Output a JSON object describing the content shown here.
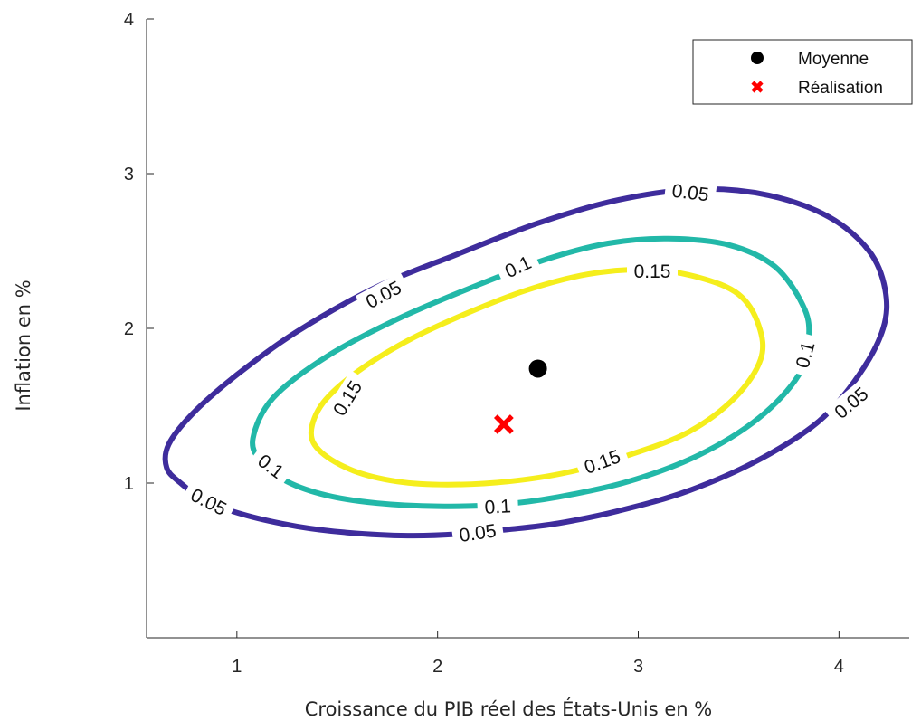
{
  "chart_data": {
    "type": "contour",
    "title": "",
    "xlabel": "Croissance du PIB réel des États-Unis en %",
    "ylabel": "Inflation en %",
    "xlim": [
      0.55,
      4.35
    ],
    "ylim": [
      0.0,
      4.0
    ],
    "xticks": [
      1,
      2,
      3,
      4
    ],
    "yticks": [
      1,
      2,
      3,
      4
    ],
    "grid": false,
    "legend_position": "top-right",
    "colors": {
      "axis": "#262626",
      "level_0_05": "#3e2c9c",
      "level_0_1": "#22b8a8",
      "level_0_15": "#f5ee1c",
      "mean": "#000000",
      "realisation": "#ff0000"
    },
    "contours": [
      {
        "level": 0.05,
        "label": "0.05",
        "color": "#3e2c9c",
        "points": [
          [
            0.65,
            1.1
          ],
          [
            0.72,
            1.0
          ],
          [
            0.85,
            0.88
          ],
          [
            1.05,
            0.79
          ],
          [
            1.3,
            0.72
          ],
          [
            1.55,
            0.68
          ],
          [
            1.85,
            0.66
          ],
          [
            2.1,
            0.67
          ],
          [
            2.35,
            0.7
          ],
          [
            2.6,
            0.74
          ],
          [
            2.9,
            0.82
          ],
          [
            3.25,
            0.95
          ],
          [
            3.6,
            1.15
          ],
          [
            3.9,
            1.4
          ],
          [
            4.1,
            1.7
          ],
          [
            4.22,
            2.0
          ],
          [
            4.23,
            2.25
          ],
          [
            4.15,
            2.5
          ],
          [
            3.95,
            2.72
          ],
          [
            3.65,
            2.86
          ],
          [
            3.3,
            2.9
          ],
          [
            2.9,
            2.83
          ],
          [
            2.5,
            2.68
          ],
          [
            2.1,
            2.48
          ],
          [
            1.7,
            2.27
          ],
          [
            1.3,
            1.98
          ],
          [
            1.0,
            1.7
          ],
          [
            0.78,
            1.45
          ],
          [
            0.66,
            1.25
          ],
          [
            0.65,
            1.1
          ]
        ],
        "labels": [
          {
            "text": "0.05",
            "x": 0.86,
            "y": 0.88,
            "angle": 27
          },
          {
            "text": "0.05",
            "x": 2.2,
            "y": 0.68,
            "angle": -8
          },
          {
            "text": "0.05",
            "x": 4.06,
            "y": 1.52,
            "angle": -40
          },
          {
            "text": "0.05",
            "x": 3.26,
            "y": 2.88,
            "angle": 7
          },
          {
            "text": "0.05",
            "x": 1.73,
            "y": 2.22,
            "angle": -28
          }
        ]
      },
      {
        "level": 0.1,
        "label": "0.1",
        "color": "#22b8a8",
        "points": [
          [
            1.08,
            1.29
          ],
          [
            1.12,
            1.14
          ],
          [
            1.25,
            1.01
          ],
          [
            1.45,
            0.92
          ],
          [
            1.7,
            0.87
          ],
          [
            2.0,
            0.85
          ],
          [
            2.3,
            0.86
          ],
          [
            2.6,
            0.91
          ],
          [
            2.95,
            1.01
          ],
          [
            3.3,
            1.18
          ],
          [
            3.6,
            1.42
          ],
          [
            3.8,
            1.7
          ],
          [
            3.85,
            1.95
          ],
          [
            3.82,
            2.15
          ],
          [
            3.68,
            2.4
          ],
          [
            3.45,
            2.54
          ],
          [
            3.15,
            2.58
          ],
          [
            2.85,
            2.55
          ],
          [
            2.55,
            2.45
          ],
          [
            2.2,
            2.28
          ],
          [
            1.8,
            2.06
          ],
          [
            1.45,
            1.82
          ],
          [
            1.18,
            1.55
          ],
          [
            1.08,
            1.29
          ]
        ],
        "labels": [
          {
            "text": "0.1",
            "x": 1.17,
            "y": 1.11,
            "angle": 37
          },
          {
            "text": "0.1",
            "x": 2.3,
            "y": 0.85,
            "angle": -3
          },
          {
            "text": "0.1",
            "x": 3.83,
            "y": 1.83,
            "angle": -75
          },
          {
            "text": "0.1",
            "x": 2.4,
            "y": 2.4,
            "angle": -25
          }
        ]
      },
      {
        "level": 0.15,
        "label": "0.15",
        "color": "#f5ee1c",
        "points": [
          [
            1.37,
            1.33
          ],
          [
            1.42,
            1.2
          ],
          [
            1.58,
            1.08
          ],
          [
            1.8,
            1.01
          ],
          [
            2.05,
            0.99
          ],
          [
            2.35,
            1.01
          ],
          [
            2.65,
            1.07
          ],
          [
            2.95,
            1.18
          ],
          [
            3.25,
            1.33
          ],
          [
            3.48,
            1.55
          ],
          [
            3.61,
            1.8
          ],
          [
            3.6,
            2.02
          ],
          [
            3.5,
            2.22
          ],
          [
            3.3,
            2.33
          ],
          [
            3.05,
            2.38
          ],
          [
            2.75,
            2.35
          ],
          [
            2.45,
            2.25
          ],
          [
            2.15,
            2.1
          ],
          [
            1.85,
            1.92
          ],
          [
            1.6,
            1.72
          ],
          [
            1.43,
            1.52
          ],
          [
            1.37,
            1.33
          ]
        ],
        "labels": [
          {
            "text": "0.15",
            "x": 1.55,
            "y": 1.55,
            "angle": -58
          },
          {
            "text": "0.15",
            "x": 2.82,
            "y": 1.14,
            "angle": -20
          },
          {
            "text": "0.15",
            "x": 3.07,
            "y": 2.37,
            "angle": 0
          }
        ]
      }
    ],
    "points": [
      {
        "name": "Moyenne",
        "x": 2.5,
        "y": 1.74,
        "marker": "circle",
        "color": "#000000"
      },
      {
        "name": "Réalisation",
        "x": 2.33,
        "y": 1.38,
        "marker": "x",
        "color": "#ff0000"
      }
    ]
  }
}
